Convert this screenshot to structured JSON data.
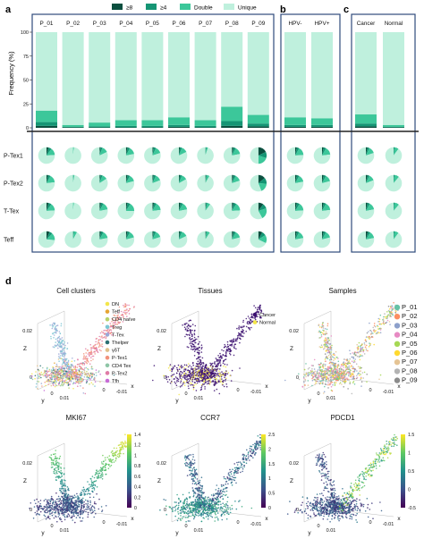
{
  "panel_labels": {
    "a": "a",
    "b": "b",
    "c": "c",
    "d": "d"
  },
  "colors": {
    "ge8": "#0b4f3f",
    "ge4": "#159574",
    "double": "#3cc79a",
    "unique": "#bff0dd",
    "frame": "#2f4b7c",
    "purple": "#3b0f70",
    "teal": "#2c8c8c",
    "yellow": "#e6e43a"
  },
  "legend_a": [
    {
      "label": "≥8",
      "key": "ge8"
    },
    {
      "label": "≥4",
      "key": "ge4"
    },
    {
      "label": "Double",
      "key": "double"
    },
    {
      "label": "Unique",
      "key": "unique"
    }
  ],
  "chart_data": [
    {
      "type": "bar",
      "title": "",
      "ylabel": "Frequency (%)",
      "ylim": [
        0,
        100
      ],
      "yticks": [
        0,
        25,
        50,
        75,
        100
      ],
      "panel_a_categories": [
        "P_01",
        "P_02",
        "P_03",
        "P_04",
        "P_05",
        "P_06",
        "P_07",
        "P_08",
        "P_09"
      ],
      "panel_b_categories": [
        "HPV-",
        "HPV+"
      ],
      "panel_c_categories": [
        "Cancer",
        "Normal"
      ],
      "series_order": [
        "ge8",
        "ge4",
        "double",
        "unique"
      ],
      "stacks": [
        [
          2,
          4,
          12,
          82
        ],
        [
          0.5,
          0.5,
          2,
          97
        ],
        [
          0.5,
          1,
          4,
          94.5
        ],
        [
          0.5,
          1.5,
          6,
          92
        ],
        [
          0.5,
          1.5,
          6,
          92
        ],
        [
          1,
          2,
          8,
          89
        ],
        [
          0.5,
          1.5,
          6,
          92
        ],
        [
          2,
          5,
          15,
          78
        ],
        [
          1.5,
          3,
          9,
          86.5
        ],
        [
          1,
          2,
          8,
          89
        ],
        [
          1,
          2,
          7,
          90
        ],
        [
          1.5,
          3,
          9.5,
          86
        ],
        [
          0.5,
          0.5,
          2,
          97
        ]
      ]
    },
    {
      "type": "pie",
      "rows": [
        "P-Tex1",
        "P-Tex2",
        "T-Tex",
        "Teff"
      ],
      "columns": [
        "P_01",
        "P_02",
        "P_03",
        "P_04",
        "P_05",
        "P_06",
        "P_07",
        "P_08",
        "P_09",
        "HPV-",
        "HPV+",
        "Cancer",
        "Normal"
      ],
      "slices_order": [
        "ge8",
        "ge4",
        "double",
        "unique"
      ],
      "values": [
        [
          [
            4,
            6,
            14,
            76
          ],
          [
            0,
            0,
            2,
            98
          ],
          [
            2,
            4,
            12,
            82
          ],
          [
            3,
            5,
            14,
            78
          ],
          [
            2,
            5,
            13,
            80
          ],
          [
            2,
            4,
            12,
            82
          ],
          [
            0,
            2,
            3,
            95
          ],
          [
            3,
            5,
            14,
            78
          ],
          [
            18,
            12,
            20,
            50
          ],
          [
            3,
            5,
            16,
            76
          ],
          [
            3,
            5,
            15,
            77
          ],
          [
            3,
            4,
            13,
            80
          ],
          [
            0,
            2,
            8,
            90
          ]
        ],
        [
          [
            3,
            5,
            15,
            77
          ],
          [
            0,
            1,
            2,
            97
          ],
          [
            2,
            4,
            10,
            84
          ],
          [
            3,
            5,
            13,
            79
          ],
          [
            2,
            5,
            12,
            81
          ],
          [
            2,
            4,
            11,
            83
          ],
          [
            1,
            2,
            5,
            92
          ],
          [
            3,
            5,
            12,
            80
          ],
          [
            14,
            12,
            18,
            56
          ],
          [
            3,
            5,
            14,
            78
          ],
          [
            3,
            5,
            13,
            79
          ],
          [
            3,
            4,
            12,
            81
          ],
          [
            0,
            2,
            9,
            89
          ]
        ],
        [
          [
            4,
            6,
            14,
            76
          ],
          [
            0,
            0,
            2,
            98
          ],
          [
            3,
            5,
            14,
            78
          ],
          [
            3,
            6,
            16,
            75
          ],
          [
            3,
            5,
            15,
            77
          ],
          [
            3,
            5,
            14,
            78
          ],
          [
            1,
            3,
            6,
            90
          ],
          [
            3,
            6,
            15,
            76
          ],
          [
            10,
            10,
            22,
            58
          ],
          [
            3,
            6,
            15,
            76
          ],
          [
            3,
            5,
            15,
            77
          ],
          [
            3,
            5,
            14,
            78
          ],
          [
            0,
            2,
            9,
            89
          ]
        ],
        [
          [
            6,
            6,
            14,
            74
          ],
          [
            0,
            2,
            6,
            92
          ],
          [
            3,
            5,
            14,
            78
          ],
          [
            3,
            5,
            13,
            79
          ],
          [
            2,
            5,
            13,
            80
          ],
          [
            2,
            4,
            12,
            82
          ],
          [
            1,
            2,
            6,
            91
          ],
          [
            3,
            5,
            13,
            79
          ],
          [
            8,
            8,
            16,
            68
          ],
          [
            3,
            5,
            14,
            78
          ],
          [
            3,
            5,
            13,
            79
          ],
          [
            4,
            5,
            13,
            78
          ],
          [
            0,
            2,
            8,
            90
          ]
        ]
      ]
    },
    {
      "type": "scatter",
      "subtype": "3D embedding",
      "title": "Cell clusters",
      "axes": {
        "z": "Z",
        "y": "y",
        "x": "x",
        "z_tick": "0.02",
        "zero": "0",
        "y_tick": "0.01",
        "x_tick": "-0.01"
      },
      "legend": [
        {
          "label": "DN",
          "color": "#f3e64a"
        },
        {
          "label": "Teff",
          "color": "#e6a532"
        },
        {
          "label": "CD4 naïve",
          "color": "#b7d36a"
        },
        {
          "label": "Treg",
          "color": "#7cc6d4"
        },
        {
          "label": "T-Tex",
          "color": "#9aa7d6"
        },
        {
          "label": "Thelper",
          "color": "#2b6f73"
        },
        {
          "label": "γδT",
          "color": "#e0c08a"
        },
        {
          "label": "P-Tex1",
          "color": "#f2917b"
        },
        {
          "label": "CD4 Tex",
          "color": "#8ec5a6"
        },
        {
          "label": "P-Tex2",
          "color": "#e07ba6"
        },
        {
          "label": "Tfh",
          "color": "#c76ad6"
        }
      ]
    },
    {
      "type": "scatter",
      "subtype": "3D embedding",
      "title": "Tissues",
      "axes": {
        "z": "Z",
        "y": "y",
        "x": "x",
        "z_tick": "0.02",
        "zero": "0",
        "y_tick": "0.01",
        "x_tick": "-0.01"
      },
      "legend": [
        {
          "label": "Cancer",
          "color": "#3b0f70"
        },
        {
          "label": "Normal",
          "color": "#f3e64a"
        }
      ]
    },
    {
      "type": "scatter",
      "subtype": "3D embedding",
      "title": "Samples",
      "axes": {
        "z": "Z",
        "y": "y",
        "x": "x",
        "z_tick": "0.02",
        "zero": "0",
        "y_tick": "0.01",
        "x_tick": "-0.01"
      },
      "legend": [
        {
          "label": "P_01",
          "color": "#66c2a5"
        },
        {
          "label": "P_02",
          "color": "#fc8d62"
        },
        {
          "label": "P_03",
          "color": "#8da0cb"
        },
        {
          "label": "P_04",
          "color": "#e78ac3"
        },
        {
          "label": "P_05",
          "color": "#a6d854"
        },
        {
          "label": "P_06",
          "color": "#ffd92f"
        },
        {
          "label": "P_07",
          "color": "#e5c494"
        },
        {
          "label": "P_08",
          "color": "#b3b3b3"
        },
        {
          "label": "P_09",
          "color": "#8c8c8c"
        }
      ]
    },
    {
      "type": "scatter",
      "subtype": "3D embedding",
      "title": "MKI67",
      "axes": {
        "z": "Z",
        "y": "y",
        "x": "x",
        "z_tick": "0.02",
        "zero": "0",
        "y_tick": "0.01",
        "x_tick": "-0.01"
      },
      "colorbar": {
        "min": 0,
        "max": 1.4,
        "ticks": [
          "1.4",
          "1.2",
          "1",
          "0.8",
          "0.6",
          "0.4",
          "0.2",
          "0"
        ]
      }
    },
    {
      "type": "scatter",
      "subtype": "3D embedding",
      "title": "CCR7",
      "axes": {
        "z": "Z",
        "y": "y",
        "x": "x",
        "z_tick": "0.02",
        "zero": "0",
        "y_tick": "0.01",
        "x_tick": "-0.01"
      },
      "colorbar": {
        "min": 0,
        "max": 2.5,
        "ticks": [
          "2.5",
          "2",
          "1.5",
          "1",
          "0.5",
          "0"
        ]
      }
    },
    {
      "type": "scatter",
      "subtype": "3D embedding",
      "title": "PDCD1",
      "axes": {
        "z": "Z",
        "y": "y",
        "x": "x",
        "z_tick": "0.02",
        "zero": "0",
        "y_tick": "0.01",
        "x_tick": "-0.01"
      },
      "colorbar": {
        "min": -0.5,
        "max": 1.5,
        "ticks": [
          "1.5",
          "1",
          "0.5",
          "0",
          "-0.5"
        ]
      }
    }
  ]
}
